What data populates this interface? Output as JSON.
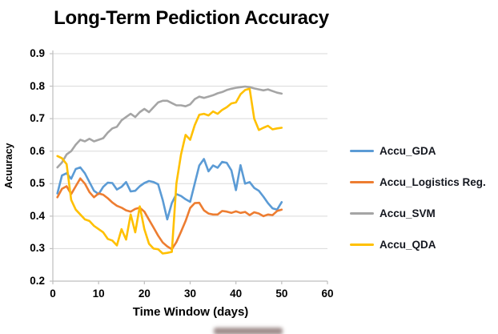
{
  "chart_data": {
    "type": "line",
    "title": "Long-Term Pediction Accuracy",
    "xlabel": "Time Window (days)",
    "ylabel": "Acuuracy",
    "xlim": [
      0,
      60
    ],
    "ylim": [
      0.2,
      0.9
    ],
    "x_ticks": [
      0,
      10,
      20,
      30,
      40,
      50,
      60
    ],
    "y_ticks": [
      0.2,
      0.3,
      0.4,
      0.5,
      0.6,
      0.7,
      0.8,
      0.9
    ],
    "grid": "horizontal",
    "legend_position": "right",
    "colors": {
      "gridline": "#D9D9D9",
      "axis": "#BFBFBF",
      "text": "#000000"
    },
    "x": [
      1,
      2,
      3,
      4,
      5,
      6,
      7,
      8,
      9,
      10,
      11,
      12,
      13,
      14,
      15,
      16,
      17,
      18,
      19,
      20,
      21,
      22,
      23,
      24,
      25,
      26,
      27,
      28,
      29,
      30,
      31,
      32,
      33,
      34,
      35,
      36,
      37,
      38,
      39,
      40,
      41,
      42,
      43,
      44,
      45,
      46,
      47,
      48,
      49,
      50
    ],
    "series": [
      {
        "name": "Accu_GDA",
        "color": "#5B9BD5",
        "values": [
          0.47,
          0.525,
          0.532,
          0.515,
          0.545,
          0.55,
          0.532,
          0.505,
          0.478,
          0.468,
          0.49,
          0.503,
          0.502,
          0.482,
          0.49,
          0.505,
          0.476,
          0.478,
          0.492,
          0.502,
          0.508,
          0.505,
          0.498,
          0.45,
          0.39,
          0.44,
          0.468,
          0.462,
          0.452,
          0.444,
          0.5,
          0.556,
          0.576,
          0.538,
          0.556,
          0.549,
          0.567,
          0.564,
          0.541,
          0.48,
          0.557,
          0.5,
          0.505,
          0.487,
          0.478,
          0.46,
          0.44,
          0.424,
          0.42,
          0.443
        ]
      },
      {
        "name": "Accu_Logistics Reg.",
        "color": "#ED7D31",
        "values": [
          0.458,
          0.484,
          0.492,
          0.468,
          0.492,
          0.516,
          0.5,
          0.474,
          0.458,
          0.47,
          0.466,
          0.455,
          0.442,
          0.432,
          0.426,
          0.418,
          0.414,
          0.422,
          0.426,
          0.414,
          0.389,
          0.365,
          0.34,
          0.319,
          0.307,
          0.298,
          0.32,
          0.352,
          0.385,
          0.425,
          0.44,
          0.441,
          0.418,
          0.408,
          0.405,
          0.405,
          0.416,
          0.414,
          0.41,
          0.415,
          0.41,
          0.413,
          0.403,
          0.412,
          0.408,
          0.4,
          0.405,
          0.403,
          0.416,
          0.42
        ]
      },
      {
        "name": "Accu_SVM",
        "color": "#A5A5A5",
        "values": [
          0.55,
          0.565,
          0.59,
          0.6,
          0.62,
          0.635,
          0.63,
          0.638,
          0.63,
          0.635,
          0.64,
          0.657,
          0.67,
          0.675,
          0.695,
          0.705,
          0.715,
          0.705,
          0.72,
          0.73,
          0.72,
          0.735,
          0.75,
          0.755,
          0.755,
          0.748,
          0.741,
          0.741,
          0.738,
          0.744,
          0.76,
          0.768,
          0.764,
          0.768,
          0.772,
          0.778,
          0.782,
          0.788,
          0.792,
          0.795,
          0.797,
          0.799,
          0.797,
          0.793,
          0.79,
          0.787,
          0.79,
          0.785,
          0.78,
          0.777
        ]
      },
      {
        "name": "Accu_QDA",
        "color": "#FFC000",
        "values": [
          0.585,
          0.578,
          0.56,
          0.45,
          0.42,
          0.405,
          0.39,
          0.385,
          0.37,
          0.36,
          0.35,
          0.33,
          0.325,
          0.31,
          0.36,
          0.328,
          0.405,
          0.35,
          0.43,
          0.36,
          0.315,
          0.3,
          0.298,
          0.285,
          0.287,
          0.29,
          0.5,
          0.59,
          0.65,
          0.635,
          0.68,
          0.712,
          0.715,
          0.71,
          0.722,
          0.715,
          0.727,
          0.735,
          0.747,
          0.75,
          0.775,
          0.788,
          0.792,
          0.7,
          0.665,
          0.672,
          0.678,
          0.667,
          0.67,
          0.672
        ]
      }
    ]
  }
}
